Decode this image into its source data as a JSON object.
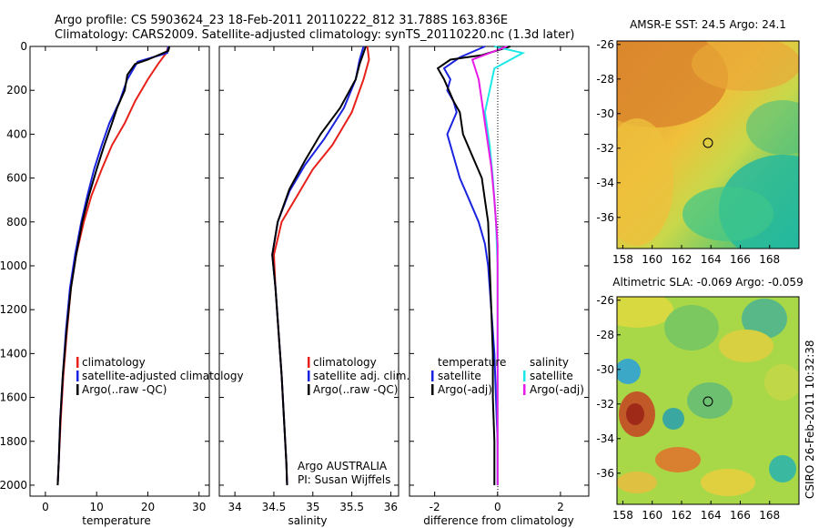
{
  "title_line1": "Argo profile: CS 5903624_23 18-Feb-2011 20110222_812 31.788S 163.836E",
  "title_line2": "Climatology: CARS2009. Satellite-adjusted climatology: synTS_20110220.nc (1.3d later)",
  "credit": "Argo AUSTRALIA",
  "pi": "PI: Susan Wijffels",
  "timestamp": "CSIRO 26-Feb-2011 10:32:38",
  "colors": {
    "climatology": "#e8201a",
    "satellite": "#1a24e0",
    "argo": "#000000",
    "sat_diff": "#1de8e8",
    "argo_diff": "#e81ae8"
  },
  "chart_data": [
    {
      "id": "temperature",
      "type": "line",
      "xlabel": "temperature",
      "ylabel": "",
      "xlim": [
        -3,
        32
      ],
      "ylim": [
        2050,
        0
      ],
      "xticks": [
        0,
        10,
        20,
        30
      ],
      "yticks": [
        0,
        200,
        400,
        600,
        800,
        1000,
        1200,
        1400,
        1600,
        1800,
        2000
      ],
      "legend": {
        "placement": "bottom-right",
        "entries": [
          "climatology",
          "satellite-adjusted climatology",
          "Argo(..raw -QC)"
        ]
      },
      "series": [
        {
          "name": "climatology",
          "color": "#e8201a",
          "points": [
            [
              24,
              0
            ],
            [
              23.6,
              30
            ],
            [
              22,
              80
            ],
            [
              20,
              150
            ],
            [
              17.5,
              250
            ],
            [
              15.5,
              350
            ],
            [
              13,
              450
            ],
            [
              11,
              560
            ],
            [
              9,
              680
            ],
            [
              7.5,
              800
            ],
            [
              6,
              950
            ],
            [
              5,
              1100
            ],
            [
              4.2,
              1300
            ],
            [
              3.5,
              1500
            ],
            [
              3,
              1700
            ],
            [
              2.6,
              1900
            ],
            [
              2.4,
              2000
            ]
          ]
        },
        {
          "name": "satellite-adjusted climatology",
          "color": "#1a24e0",
          "points": [
            [
              24,
              0
            ],
            [
              23.8,
              30
            ],
            [
              18,
              70
            ],
            [
              16,
              150
            ],
            [
              14.5,
              250
            ],
            [
              12.5,
              350
            ],
            [
              11,
              450
            ],
            [
              9.5,
              560
            ],
            [
              8.2,
              680
            ],
            [
              7,
              800
            ],
            [
              5.8,
              950
            ],
            [
              4.8,
              1100
            ],
            [
              4,
              1300
            ],
            [
              3.4,
              1500
            ],
            [
              2.9,
              1700
            ],
            [
              2.6,
              1900
            ],
            [
              2.4,
              2000
            ]
          ]
        },
        {
          "name": "Argo(..raw -QC)",
          "color": "#000000",
          "points": [
            [
              24.2,
              0
            ],
            [
              24,
              20
            ],
            [
              20,
              60
            ],
            [
              17.5,
              80
            ],
            [
              16,
              130
            ],
            [
              15.5,
              200
            ],
            [
              14,
              280
            ],
            [
              13,
              350
            ],
            [
              11.5,
              450
            ],
            [
              10,
              560
            ],
            [
              8.5,
              680
            ],
            [
              7.2,
              800
            ],
            [
              6,
              950
            ],
            [
              5,
              1100
            ],
            [
              4.1,
              1300
            ],
            [
              3.4,
              1500
            ],
            [
              2.9,
              1700
            ],
            [
              2.6,
              1900
            ],
            [
              2.4,
              2000
            ]
          ]
        }
      ]
    },
    {
      "id": "salinity",
      "type": "line",
      "xlabel": "salinity",
      "ylabel": "",
      "xlim": [
        33.8,
        36.1
      ],
      "ylim": [
        2050,
        0
      ],
      "xticks": [
        34,
        34.5,
        35,
        35.5,
        36
      ],
      "yticks": [
        0,
        200,
        400,
        600,
        800,
        1000,
        1200,
        1400,
        1600,
        1800,
        2000
      ],
      "legend": {
        "placement": "bottom-right",
        "entries": [
          "climatology",
          "satellite adj. clim.",
          "Argo(..raw -QC)"
        ]
      },
      "series": [
        {
          "name": "climatology",
          "color": "#e8201a",
          "points": [
            [
              35.7,
              0
            ],
            [
              35.72,
              60
            ],
            [
              35.65,
              150
            ],
            [
              35.5,
              300
            ],
            [
              35.25,
              450
            ],
            [
              35,
              560
            ],
            [
              34.8,
              680
            ],
            [
              34.6,
              800
            ],
            [
              34.5,
              950
            ],
            [
              34.52,
              1100
            ],
            [
              34.56,
              1300
            ],
            [
              34.6,
              1500
            ],
            [
              34.63,
              1700
            ],
            [
              34.66,
              1900
            ],
            [
              34.67,
              2000
            ]
          ]
        },
        {
          "name": "satellite adj. clim.",
          "color": "#1a24e0",
          "points": [
            [
              35.65,
              0
            ],
            [
              35.6,
              60
            ],
            [
              35.55,
              150
            ],
            [
              35.4,
              280
            ],
            [
              35.15,
              420
            ],
            [
              34.9,
              540
            ],
            [
              34.7,
              660
            ],
            [
              34.55,
              800
            ],
            [
              34.48,
              950
            ],
            [
              34.52,
              1100
            ],
            [
              34.56,
              1300
            ],
            [
              34.6,
              1500
            ],
            [
              34.63,
              1700
            ],
            [
              34.66,
              1900
            ],
            [
              34.67,
              2000
            ]
          ]
        },
        {
          "name": "Argo(..raw -QC)",
          "color": "#000000",
          "points": [
            [
              35.68,
              0
            ],
            [
              35.6,
              80
            ],
            [
              35.55,
              150
            ],
            [
              35.35,
              280
            ],
            [
              35.1,
              400
            ],
            [
              34.9,
              520
            ],
            [
              34.7,
              650
            ],
            [
              34.55,
              800
            ],
            [
              34.48,
              950
            ],
            [
              34.52,
              1100
            ],
            [
              34.56,
              1300
            ],
            [
              34.6,
              1500
            ],
            [
              34.63,
              1700
            ],
            [
              34.66,
              1900
            ],
            [
              34.67,
              2000
            ]
          ]
        }
      ]
    },
    {
      "id": "difference",
      "type": "line",
      "xlabel": "difference from climatology",
      "ylabel": "",
      "xlim": [
        -2.8,
        2.9
      ],
      "ylim": [
        2050,
        0
      ],
      "xticks": [
        -2,
        0,
        2
      ],
      "yticks": [
        0,
        200,
        400,
        600,
        800,
        1000,
        1200,
        1400,
        1600,
        1800,
        2000
      ],
      "legend": {
        "placement": "bottom",
        "groups": [
          {
            "header": "temperature",
            "entries": [
              "satellite",
              "Argo(-adj)"
            ]
          },
          {
            "header": "salinity",
            "entries": [
              "satellite",
              "Argo(-adj)"
            ]
          }
        ]
      },
      "series": [
        {
          "name": "temperature satellite",
          "color": "#1a24e0",
          "points": [
            [
              -0.4,
              0
            ],
            [
              -1.2,
              50
            ],
            [
              -1.7,
              100
            ],
            [
              -1.5,
              150
            ],
            [
              -1.6,
              200
            ],
            [
              -1.4,
              250
            ],
            [
              -1.3,
              300
            ],
            [
              -1.6,
              400
            ],
            [
              -1.4,
              500
            ],
            [
              -1.2,
              600
            ],
            [
              -0.9,
              700
            ],
            [
              -0.6,
              800
            ],
            [
              -0.4,
              900
            ],
            [
              -0.3,
              1000
            ],
            [
              -0.2,
              1200
            ],
            [
              -0.1,
              1400
            ],
            [
              -0.05,
              1600
            ],
            [
              0,
              1800
            ],
            [
              0,
              2000
            ]
          ]
        },
        {
          "name": "temperature Argo(-adj)",
          "color": "#000000",
          "points": [
            [
              0.4,
              0
            ],
            [
              -0.5,
              40
            ],
            [
              -1.5,
              60
            ],
            [
              -1.9,
              100
            ],
            [
              -1.7,
              150
            ],
            [
              -1.4,
              250
            ],
            [
              -1.2,
              300
            ],
            [
              -1.1,
              400
            ],
            [
              -0.8,
              500
            ],
            [
              -0.5,
              600
            ],
            [
              -0.4,
              700
            ],
            [
              -0.3,
              800
            ],
            [
              -0.25,
              1000
            ],
            [
              -0.2,
              1200
            ],
            [
              -0.15,
              1400
            ],
            [
              -0.15,
              1600
            ],
            [
              -0.1,
              1800
            ],
            [
              -0.1,
              2000
            ]
          ]
        },
        {
          "name": "salinity satellite",
          "color": "#1de8e8",
          "points": [
            [
              -0.1,
              0
            ],
            [
              0.8,
              30
            ],
            [
              -0.1,
              100
            ],
            [
              -0.4,
              300
            ],
            [
              -0.25,
              450
            ],
            [
              -0.15,
              600
            ],
            [
              -0.05,
              800
            ],
            [
              0,
              1000
            ],
            [
              0,
              1200
            ],
            [
              0,
              1500
            ],
            [
              0,
              1800
            ],
            [
              0,
              2000
            ]
          ]
        },
        {
          "name": "salinity Argo(-adj)",
          "color": "#e81ae8",
          "points": [
            [
              0.3,
              0
            ],
            [
              -0.8,
              60
            ],
            [
              -0.6,
              150
            ],
            [
              -0.5,
              250
            ],
            [
              -0.4,
              350
            ],
            [
              -0.3,
              450
            ],
            [
              -0.2,
              550
            ],
            [
              -0.1,
              700
            ],
            [
              0,
              900
            ],
            [
              0,
              1100
            ],
            [
              0,
              1400
            ],
            [
              0,
              1700
            ],
            [
              0,
              2000
            ]
          ]
        }
      ]
    },
    {
      "id": "amsr_sst",
      "type": "heatmap",
      "title": "AMSR-E SST: 24.5 Argo: 24.1",
      "xlim": [
        157.6,
        170
      ],
      "ylim": [
        -37.8,
        -25.8
      ],
      "xticks": [
        158,
        160,
        162,
        164,
        166,
        168
      ],
      "yticks": [
        -26,
        -28,
        -30,
        -32,
        -34,
        -36
      ],
      "argo_position": [
        163.836,
        -31.788
      ]
    },
    {
      "id": "altimetric_sla",
      "type": "heatmap",
      "title": "Altimetric SLA: -0.069 Argo: -0.059",
      "xlim": [
        157.6,
        170
      ],
      "ylim": [
        -37.8,
        -25.8
      ],
      "xticks": [
        158,
        160,
        162,
        164,
        166,
        168
      ],
      "yticks": [
        -26,
        -28,
        -30,
        -32,
        -34,
        -36
      ],
      "argo_position": [
        163.836,
        -31.788
      ]
    }
  ]
}
